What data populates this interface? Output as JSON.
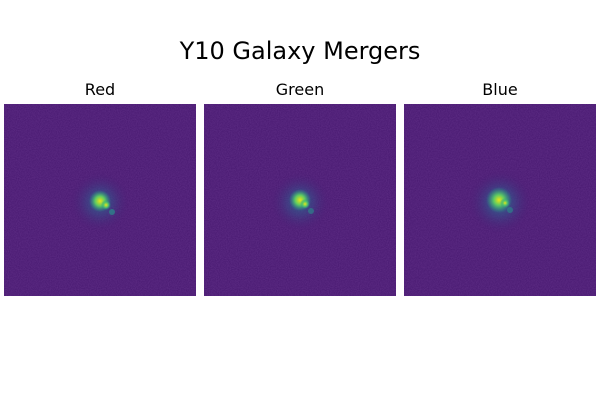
{
  "figure": {
    "title": "Y10 Galaxy Mergers",
    "panels": [
      {
        "label": "Red"
      },
      {
        "label": "Green"
      },
      {
        "label": "Blue"
      }
    ]
  },
  "colors": {
    "background": "#ffffff",
    "noise_background": "#46176f",
    "noise_dark": "#3d0f63",
    "noise_light": "#4a2a7c",
    "halo_blue": "#2b6f8e",
    "halo_teal": "#1f9b8a",
    "core_green": "#5ec962",
    "core_yellow": "#e8e51a"
  }
}
